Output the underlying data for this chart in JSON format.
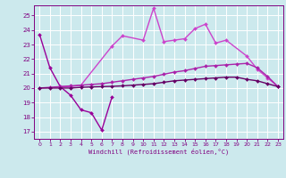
{
  "xlabel": "Windchill (Refroidissement éolien,°C)",
  "bg_color": "#cce9ed",
  "grid_color": "#ffffff",
  "xlim": [
    -0.5,
    23.5
  ],
  "ylim": [
    16.5,
    25.7
  ],
  "yticks": [
    17,
    18,
    19,
    20,
    21,
    22,
    23,
    24,
    25
  ],
  "xticks": [
    0,
    1,
    2,
    3,
    4,
    5,
    6,
    7,
    8,
    9,
    10,
    11,
    12,
    13,
    14,
    15,
    16,
    17,
    18,
    19,
    20,
    21,
    22,
    23
  ],
  "series": [
    {
      "x": [
        0,
        1,
        2,
        3,
        4,
        5,
        6,
        7
      ],
      "y": [
        23.7,
        21.4,
        20.1,
        19.5,
        18.5,
        18.3,
        17.1,
        19.4
      ],
      "color": "#990099",
      "lw": 1.0
    },
    {
      "x": [
        2,
        3,
        4,
        7,
        8,
        10,
        11,
        12,
        13,
        14,
        15,
        16,
        17,
        18,
        20,
        21,
        22,
        23
      ],
      "y": [
        20.1,
        20.1,
        20.2,
        22.9,
        23.6,
        23.3,
        25.5,
        23.2,
        23.3,
        23.4,
        24.1,
        24.4,
        23.1,
        23.3,
        22.2,
        21.3,
        20.7,
        20.1
      ],
      "color": "#cc44cc",
      "lw": 1.0
    },
    {
      "x": [
        0,
        1,
        2,
        3,
        4,
        5,
        6,
        7,
        8,
        9,
        10,
        11,
        12,
        13,
        14,
        15,
        16,
        17,
        18,
        19,
        20,
        21,
        22,
        23
      ],
      "y": [
        20.0,
        20.05,
        20.1,
        20.15,
        20.2,
        20.25,
        20.3,
        20.4,
        20.5,
        20.6,
        20.7,
        20.8,
        20.95,
        21.1,
        21.2,
        21.35,
        21.5,
        21.55,
        21.6,
        21.65,
        21.7,
        21.4,
        20.8,
        20.1
      ],
      "color": "#aa22aa",
      "lw": 1.0
    },
    {
      "x": [
        0,
        1,
        2,
        3,
        4,
        5,
        6,
        7,
        8,
        9,
        10,
        11,
        12,
        13,
        14,
        15,
        16,
        17,
        18,
        19,
        20,
        21,
        22,
        23
      ],
      "y": [
        20.0,
        20.0,
        20.0,
        20.0,
        20.05,
        20.08,
        20.1,
        20.12,
        20.15,
        20.2,
        20.25,
        20.3,
        20.4,
        20.5,
        20.55,
        20.6,
        20.65,
        20.7,
        20.75,
        20.75,
        20.6,
        20.5,
        20.3,
        20.1
      ],
      "color": "#660066",
      "lw": 1.0
    }
  ]
}
